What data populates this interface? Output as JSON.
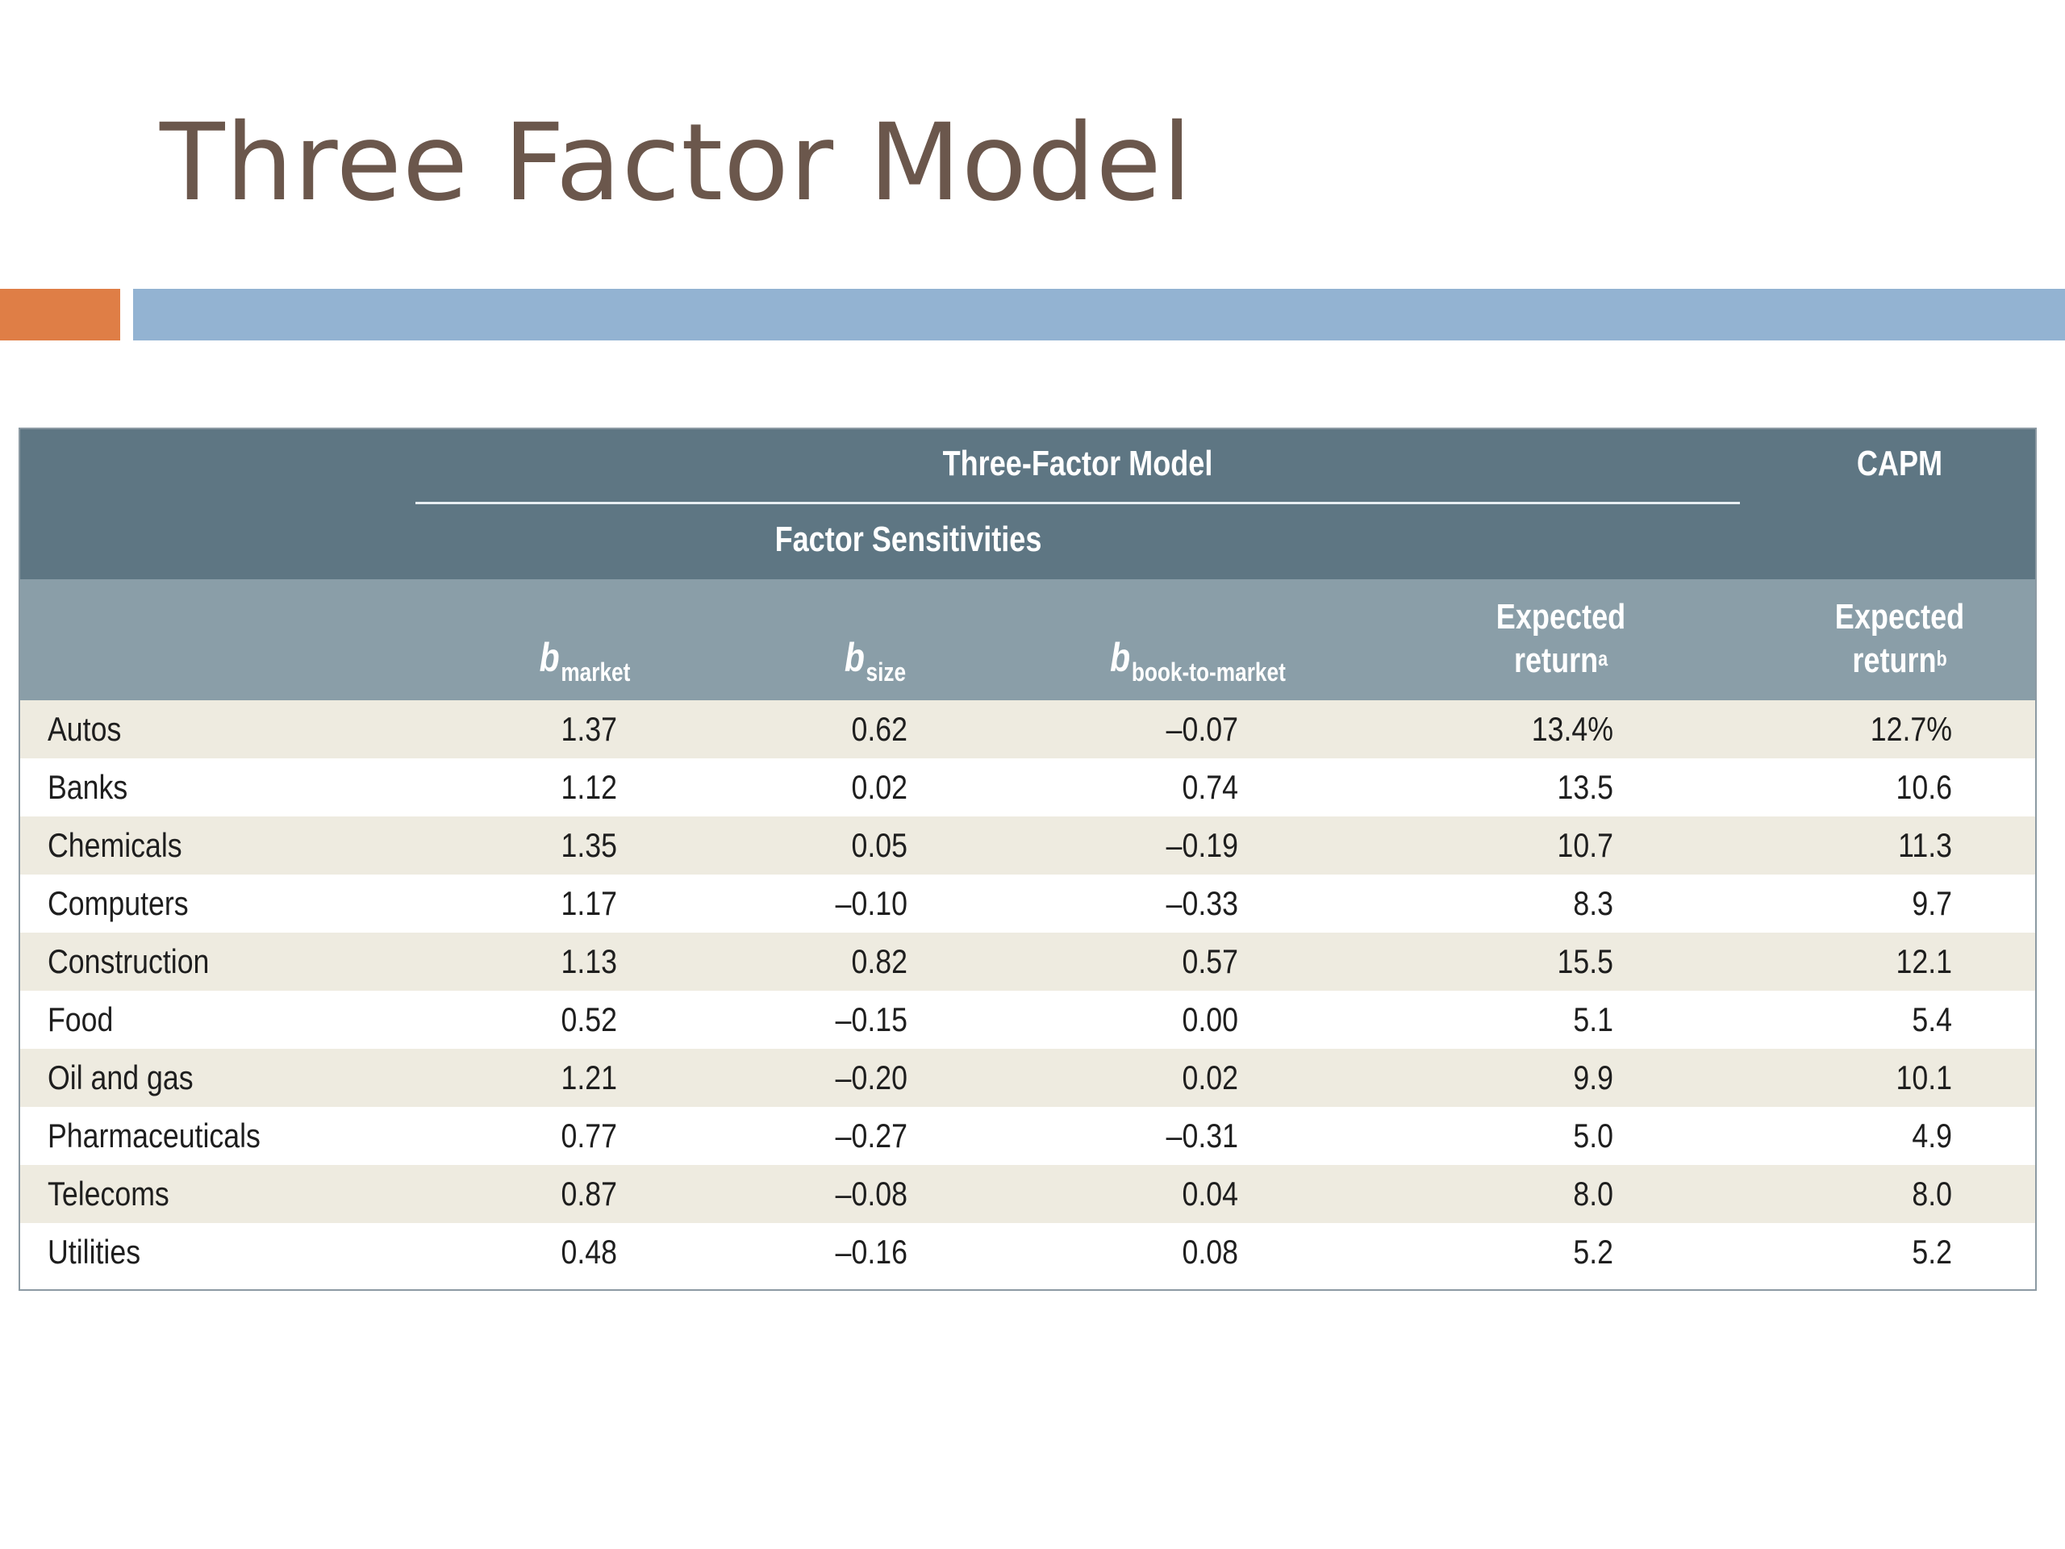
{
  "slide": {
    "title": "Three Factor Model"
  },
  "table": {
    "group_header": "Three-Factor Model",
    "subgroup_header": "Factor Sensitivities",
    "capm_header": "CAPM",
    "columns": {
      "b_market": {
        "b": "b",
        "sub": "market"
      },
      "b_size": {
        "b": "b",
        "sub": "size"
      },
      "b_btm": {
        "b": "b",
        "sub": "book-to-market"
      },
      "exp_return_a": {
        "line1": "Expected",
        "line2": "return",
        "sup": "a"
      },
      "exp_return_b": {
        "line1": "Expected",
        "line2": "return",
        "sup": "b"
      }
    },
    "rows": [
      {
        "name": "Autos",
        "b_market": "1.37",
        "b_size": "0.62",
        "b_btm": "–0.07",
        "tfm": "13.4%",
        "capm": "12.7%"
      },
      {
        "name": "Banks",
        "b_market": "1.12",
        "b_size": "0.02",
        "b_btm": "0.74",
        "tfm": "13.5",
        "capm": "10.6"
      },
      {
        "name": "Chemicals",
        "b_market": "1.35",
        "b_size": "0.05",
        "b_btm": "–0.19",
        "tfm": "10.7",
        "capm": "11.3"
      },
      {
        "name": "Computers",
        "b_market": "1.17",
        "b_size": "–0.10",
        "b_btm": "–0.33",
        "tfm": "8.3",
        "capm": "9.7"
      },
      {
        "name": "Construction",
        "b_market": "1.13",
        "b_size": "0.82",
        "b_btm": "0.57",
        "tfm": "15.5",
        "capm": "12.1"
      },
      {
        "name": "Food",
        "b_market": "0.52",
        "b_size": "–0.15",
        "b_btm": "0.00",
        "tfm": "5.1",
        "capm": "5.4"
      },
      {
        "name": "Oil and gas",
        "b_market": "1.21",
        "b_size": "–0.20",
        "b_btm": "0.02",
        "tfm": "9.9",
        "capm": "10.1"
      },
      {
        "name": "Pharmaceuticals",
        "b_market": "0.77",
        "b_size": "–0.27",
        "b_btm": "–0.31",
        "tfm": "5.0",
        "capm": "4.9"
      },
      {
        "name": "Telecoms",
        "b_market": "0.87",
        "b_size": "–0.08",
        "b_btm": "0.04",
        "tfm": "8.0",
        "capm": "8.0"
      },
      {
        "name": "Utilities",
        "b_market": "0.48",
        "b_size": "–0.16",
        "b_btm": "0.08",
        "tfm": "5.2",
        "capm": "5.2"
      }
    ]
  },
  "colors": {
    "title": "#6b574c",
    "accent_orange": "#df7e46",
    "accent_blue": "#93b3d2",
    "header_dark": "#5e7683",
    "header_light": "#8a9ea8",
    "row_shade": "#eeebe0"
  }
}
